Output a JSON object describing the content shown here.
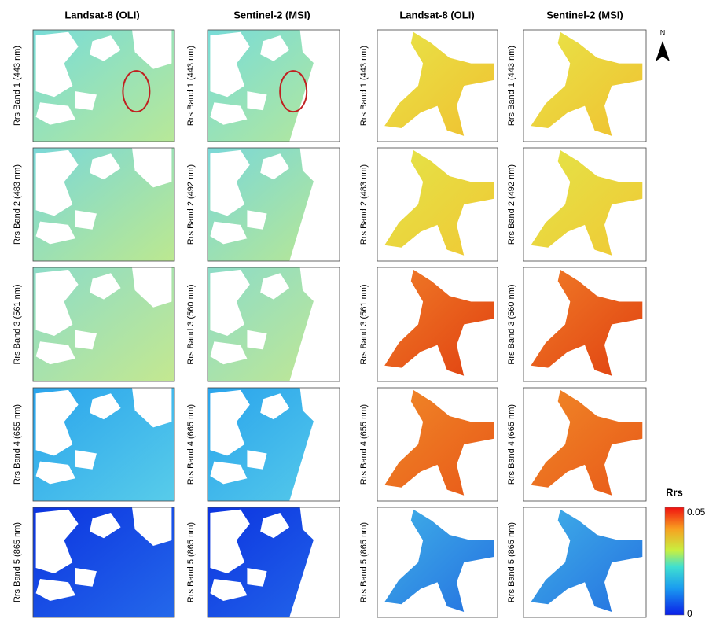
{
  "columns": [
    {
      "header": "Landsat-8 (OLI)",
      "bands": [
        "Rrs Band 1 (443 nm)",
        "Rrs Band 2 (483 nm)",
        "Rrs Band 3 (561 nm)",
        "Rrs Band 4 (655 nm)",
        "Rrs Band 5 (865 nm)"
      ]
    },
    {
      "header": "Sentinel-2 (MSI)",
      "bands": [
        "Rrs Band 1 (443 nm)",
        "Rrs Band 2 (492 nm)",
        "Rrs Band 3 (560 nm)",
        "Rrs Band 4 (665 nm)",
        "Rrs Band 5 (865 nm)"
      ]
    },
    {
      "header": "Landsat-8 (OLI)",
      "bands": [
        "Rrs Band 1 (443 nm)",
        "Rrs Band 2 (483 nm)",
        "Rrs Band 3 (561 nm)",
        "Rrs Band 4 (655 nm)",
        "Rrs Band 5 (865 nm)"
      ]
    },
    {
      "header": "Sentinel-2 (MSI)",
      "bands": [
        "Rrs Band 1 (443 nm)",
        "Rrs Band 2 (492 nm)",
        "Rrs Band 3 (560 nm)",
        "Rrs Band 4 (665 nm)",
        "Rrs Band 5 (865 nm)"
      ]
    }
  ],
  "north": "N",
  "colorbar": {
    "title": "Rrs",
    "max": "0.05",
    "min": "0"
  }
}
